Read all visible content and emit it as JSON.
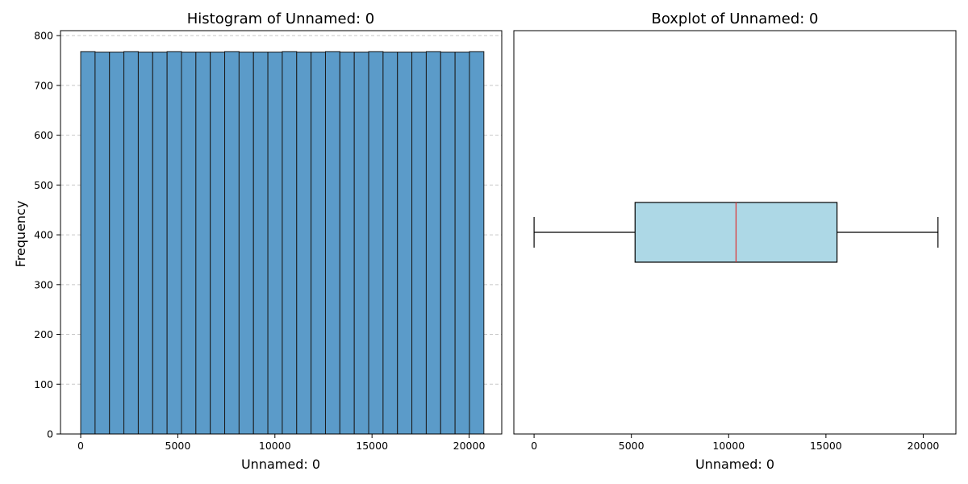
{
  "chart_data": [
    {
      "type": "bar",
      "subtype": "histogram",
      "title": "Histogram of Unnamed: 0",
      "xlabel": "Unnamed: 0",
      "ylabel": "Frequency",
      "xlim": [
        -1040,
        21680
      ],
      "ylim": [
        0,
        810
      ],
      "x_ticks": [
        0,
        5000,
        10000,
        15000,
        20000
      ],
      "y_ticks": [
        0,
        100,
        200,
        300,
        400,
        500,
        600,
        700,
        800
      ],
      "grid": "y-dashed",
      "bar_color": "#5b9bc9",
      "edge_color": "#1a1a1a",
      "bin_start": 0,
      "bin_end": 20759,
      "counts": [
        768,
        767,
        767,
        768,
        767,
        767,
        768,
        767,
        767,
        767,
        768,
        767,
        767,
        767,
        768,
        767,
        767,
        768,
        767,
        767,
        768,
        767,
        767,
        767,
        768,
        767,
        767,
        768
      ]
    },
    {
      "type": "boxplot",
      "orientation": "horizontal",
      "title": "Boxplot of Unnamed: 0",
      "xlabel": "Unnamed: 0",
      "xlim": [
        -1040,
        21680
      ],
      "x_ticks": [
        0,
        5000,
        10000,
        15000,
        20000
      ],
      "whisker_low": 0,
      "q1": 5190,
      "median": 10380,
      "q3": 15570,
      "whisker_high": 20759,
      "box_color": "#add8e6",
      "median_color": "#e03030"
    }
  ]
}
